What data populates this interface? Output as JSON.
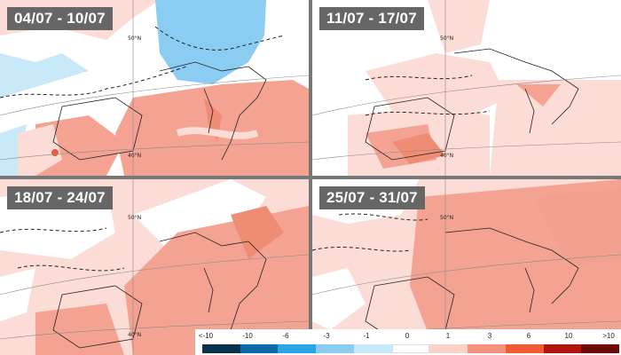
{
  "panels": [
    {
      "label": "04/07 - 10/07"
    },
    {
      "label": "11/07 - 17/07"
    },
    {
      "label": "18/07 - 24/07"
    },
    {
      "label": "25/07 - 31/07"
    }
  ],
  "lat_labels": {
    "n50": "50°N",
    "n40": "40°N"
  },
  "legend": {
    "ticks": [
      "<-10",
      "-10",
      "-6",
      "-3",
      "-1",
      "0",
      "1",
      "3",
      "6",
      "10",
      ">10"
    ],
    "colors": [
      "#08334f",
      "#0a6aa8",
      "#2aa6e8",
      "#8bcdf2",
      "#c8e9f8",
      "#ffffff",
      "#fbd2c8",
      "#f4907b",
      "#f15a33",
      "#b0160f",
      "#6b0a08"
    ]
  },
  "palette": {
    "anomaly_neutral": "#ffffff",
    "anomaly_warm_light": "#fbdcd6",
    "anomaly_warm": "#f4a393",
    "anomaly_warm_strong": "#ef5a3c",
    "anomaly_cool_light": "#c8e9f8",
    "anomaly_cool": "#8bcdf2"
  }
}
